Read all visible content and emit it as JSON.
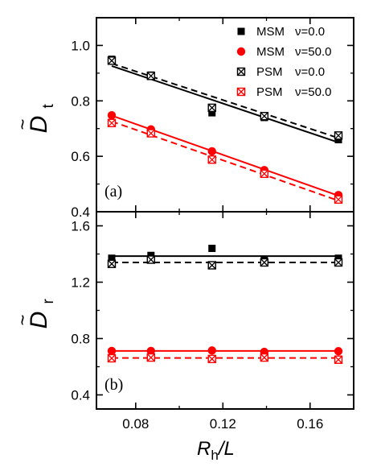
{
  "chart_data": [
    {
      "type": "scatter",
      "panel_label": "(a)",
      "ylabel_main": "D",
      "ylabel_accent": "~",
      "ylabel_sub": "t",
      "ylim": [
        0.4,
        1.1
      ],
      "yticks": [
        0.4,
        0.6,
        0.8,
        1.0
      ],
      "ytick_labels": [
        "0.4",
        "0.6",
        "0.8",
        "1.0"
      ],
      "xlim": [
        0.062,
        0.18
      ],
      "legend": {
        "position": "top-right",
        "entries": [
          {
            "method": "MSM",
            "nu": "ν=0.0",
            "marker": "square-filled",
            "color": "#000000"
          },
          {
            "method": "MSM",
            "nu": "ν=50.0",
            "marker": "circle-filled",
            "color": "#ff0000"
          },
          {
            "method": "PSM",
            "nu": "ν=0.0",
            "marker": "square-x",
            "color": "#000000"
          },
          {
            "method": "PSM",
            "nu": "ν=50.0",
            "marker": "square-x",
            "color": "#ff0000"
          }
        ]
      },
      "series": [
        {
          "name": "MSM ν=0.0",
          "marker": "square-filled",
          "color": "#000000",
          "x": [
            0.069,
            0.087,
            0.115,
            0.139,
            0.173
          ],
          "y": [
            0.95,
            0.893,
            0.757,
            0.74,
            0.66
          ],
          "fit": {
            "style": "solid",
            "x": [
              0.069,
              0.173
            ],
            "y": [
              0.926,
              0.65
            ]
          }
        },
        {
          "name": "MSM ν=50.0",
          "marker": "circle-filled",
          "color": "#ff0000",
          "x": [
            0.069,
            0.087,
            0.115,
            0.139,
            0.173
          ],
          "y": [
            0.748,
            0.697,
            0.618,
            0.55,
            0.46
          ],
          "fit": {
            "style": "solid",
            "x": [
              0.069,
              0.173
            ],
            "y": [
              0.747,
              0.458
            ]
          }
        },
        {
          "name": "PSM ν=0.0",
          "marker": "square-x",
          "color": "#000000",
          "x": [
            0.069,
            0.087,
            0.115,
            0.139,
            0.173
          ],
          "y": [
            0.945,
            0.89,
            0.775,
            0.745,
            0.675
          ],
          "fit": {
            "style": "dashed",
            "x": [
              0.069,
              0.173
            ],
            "y": [
              0.935,
              0.666
            ]
          }
        },
        {
          "name": "PSM ν=50.0",
          "marker": "square-x",
          "color": "#ff0000",
          "x": [
            0.069,
            0.087,
            0.115,
            0.139,
            0.173
          ],
          "y": [
            0.72,
            0.683,
            0.588,
            0.537,
            0.444
          ],
          "fit": {
            "style": "dashed",
            "x": [
              0.069,
              0.173
            ],
            "y": [
              0.726,
              0.44
            ]
          }
        }
      ]
    },
    {
      "type": "scatter",
      "panel_label": "(b)",
      "ylabel_main": "D",
      "ylabel_accent": "~",
      "ylabel_sub": "r",
      "ylim": [
        0.3,
        1.7
      ],
      "yticks": [
        0.4,
        0.8,
        1.2,
        1.6
      ],
      "ytick_labels": [
        "0.4",
        "0.8",
        "1.2",
        "1.6"
      ],
      "xlim": [
        0.062,
        0.18
      ],
      "xticks": [
        0.08,
        0.12,
        0.16
      ],
      "xtick_labels": [
        "0.08",
        "0.12",
        "0.16"
      ],
      "xlabel_main": "R",
      "xlabel_sub": "h",
      "xlabel_tail": "/L",
      "series": [
        {
          "name": "MSM ν=0.0",
          "marker": "square-filled",
          "color": "#000000",
          "x": [
            0.069,
            0.087,
            0.115,
            0.139,
            0.173
          ],
          "y": [
            1.37,
            1.39,
            1.44,
            1.36,
            1.37
          ],
          "fit": {
            "style": "solid",
            "x": [
              0.069,
              0.173
            ],
            "y": [
              1.385,
              1.385
            ]
          }
        },
        {
          "name": "MSM ν=50.0",
          "marker": "circle-filled",
          "color": "#ff0000",
          "x": [
            0.069,
            0.087,
            0.115,
            0.139,
            0.173
          ],
          "y": [
            0.712,
            0.712,
            0.715,
            0.705,
            0.71
          ],
          "fit": {
            "style": "solid",
            "x": [
              0.069,
              0.173
            ],
            "y": [
              0.712,
              0.712
            ]
          }
        },
        {
          "name": "PSM ν=0.0",
          "marker": "square-x",
          "color": "#000000",
          "x": [
            0.069,
            0.087,
            0.115,
            0.139,
            0.173
          ],
          "y": [
            1.33,
            1.36,
            1.32,
            1.34,
            1.34
          ],
          "fit": {
            "style": "dashed",
            "x": [
              0.069,
              0.173
            ],
            "y": [
              1.34,
              1.34
            ]
          }
        },
        {
          "name": "PSM ν=50.0",
          "marker": "square-x",
          "color": "#ff0000",
          "x": [
            0.069,
            0.087,
            0.115,
            0.139,
            0.173
          ],
          "y": [
            0.66,
            0.665,
            0.655,
            0.665,
            0.65
          ],
          "fit": {
            "style": "dashed",
            "x": [
              0.069,
              0.173
            ],
            "y": [
              0.662,
              0.662
            ]
          }
        }
      ]
    }
  ]
}
